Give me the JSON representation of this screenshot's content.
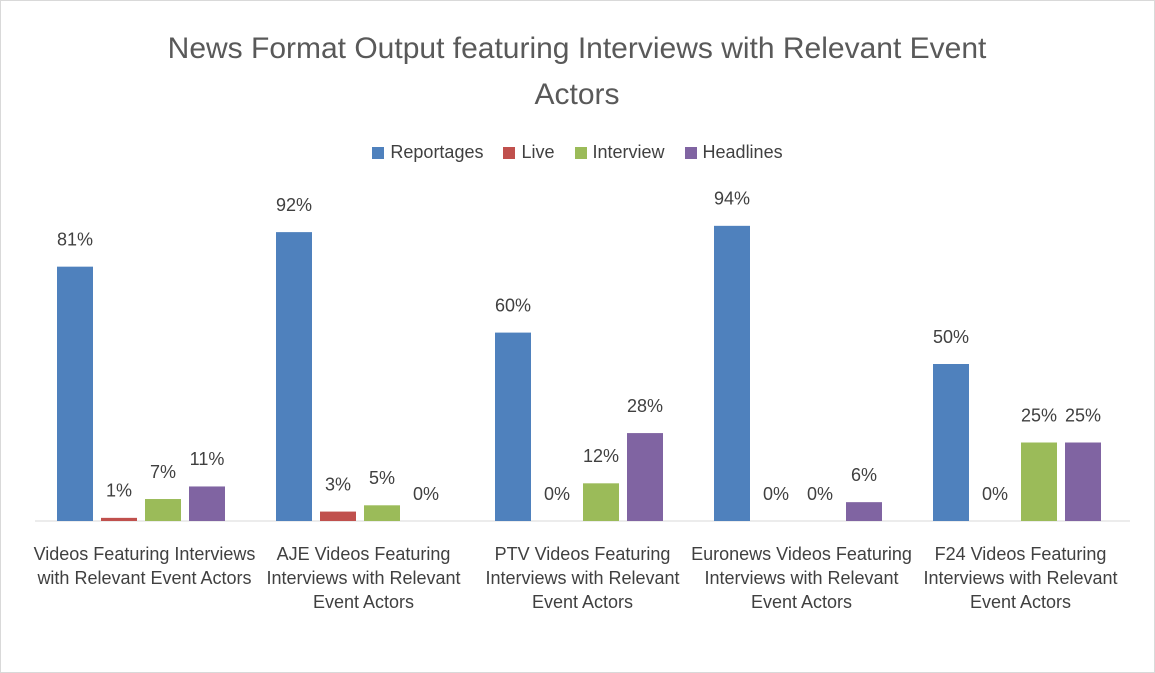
{
  "chart_data": {
    "type": "bar",
    "title": "News Format Output featuring Interviews with Relevant Event Actors",
    "categories": [
      "Videos Featuring Interviews with Relevant Event Actors",
      "AJE Videos Featuring Interviews with Relevant Event Actors",
      "PTV Videos Featuring Interviews with Relevant Event Actors",
      "Euronews Videos Featuring Interviews with Relevant Event Actors",
      "F24 Videos Featuring Interviews with Relevant Event Actors"
    ],
    "series": [
      {
        "name": "Reportages",
        "color": "#4f81bd",
        "values": [
          81,
          92,
          60,
          94,
          50
        ],
        "value_labels": [
          "81%",
          "92%",
          "60%",
          "94%",
          "50%"
        ]
      },
      {
        "name": "Live",
        "color": "#c0504d",
        "values": [
          1,
          3,
          0,
          0,
          0
        ],
        "value_labels": [
          "1%",
          "3%",
          "0%",
          "0%",
          "0%"
        ]
      },
      {
        "name": "Interview",
        "color": "#9bbb59",
        "values": [
          7,
          5,
          12,
          0,
          25
        ],
        "value_labels": [
          "7%",
          "5%",
          "12%",
          "0%",
          "25%"
        ]
      },
      {
        "name": "Headlines",
        "color": "#8064a2",
        "values": [
          11,
          0,
          28,
          6,
          25
        ],
        "value_labels": [
          "11%",
          "0%",
          "28%",
          "6%",
          "25%"
        ]
      }
    ],
    "legend": "top"
  }
}
